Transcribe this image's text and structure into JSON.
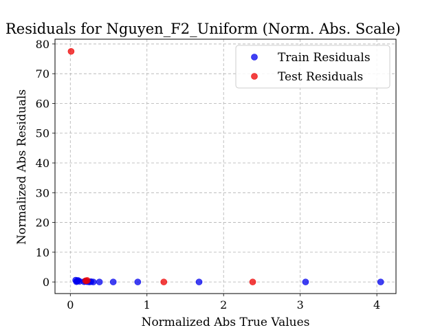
{
  "chart_data": {
    "type": "scatter",
    "title": "Residuals for Nguyen_F2_Uniform (Norm. Abs. Scale)",
    "xlabel": "Normalized Abs True Values",
    "ylabel": "Normalized Abs Residuals",
    "xlim": [
      -0.2,
      4.25
    ],
    "ylim": [
      -3.9,
      81.6
    ],
    "xticks": [
      0,
      1,
      2,
      3,
      4
    ],
    "yticks": [
      0,
      10,
      20,
      30,
      40,
      50,
      60,
      70,
      80
    ],
    "grid": true,
    "legend_position": "top-right",
    "series": [
      {
        "name": "Train Residuals",
        "color": "#0000ee",
        "points": [
          [
            0.07,
            0.6
          ],
          [
            0.08,
            0.1
          ],
          [
            0.09,
            0.3
          ],
          [
            0.1,
            0.5
          ],
          [
            0.12,
            0.2
          ],
          [
            0.18,
            0.1
          ],
          [
            0.2,
            0.2
          ],
          [
            0.22,
            0.1
          ],
          [
            0.25,
            0.0
          ],
          [
            0.27,
            0.1
          ],
          [
            0.3,
            0.0
          ],
          [
            0.38,
            0.0
          ],
          [
            0.56,
            0.0
          ],
          [
            0.88,
            0.0
          ],
          [
            1.68,
            0.0
          ],
          [
            3.07,
            0.0
          ],
          [
            4.05,
            0.0
          ]
        ]
      },
      {
        "name": "Test Residuals",
        "color": "#ee0000",
        "points": [
          [
            0.01,
            77.5
          ],
          [
            0.2,
            0.4
          ],
          [
            0.22,
            0.5
          ],
          [
            1.22,
            0.0
          ],
          [
            2.38,
            0.0
          ]
        ]
      }
    ]
  }
}
